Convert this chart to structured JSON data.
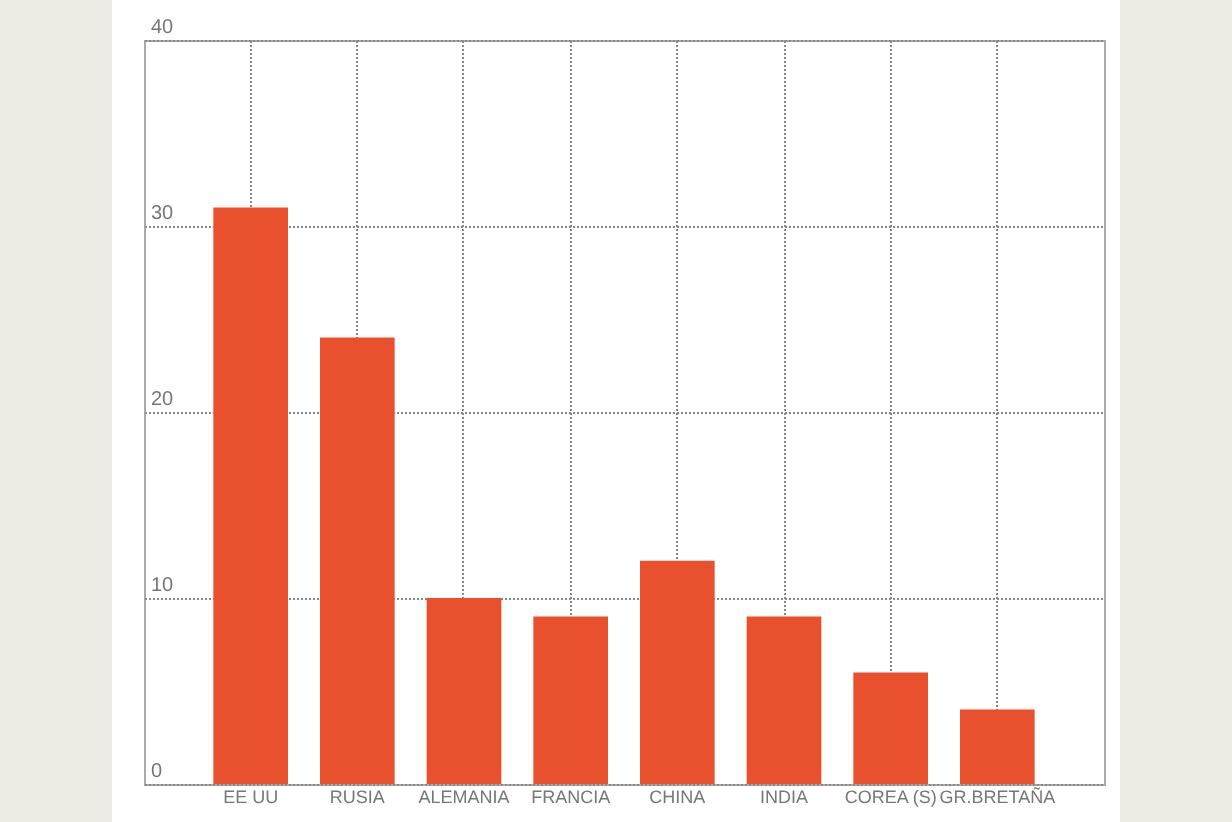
{
  "chart_data": {
    "type": "bar",
    "categories": [
      "EE UU",
      "RUSIA",
      "ALEMANIA",
      "FRANCIA",
      "CHINA",
      "INDIA",
      "COREA (S)",
      "GR.BRETAÑA"
    ],
    "values": [
      31,
      24,
      10,
      9,
      12,
      9,
      6,
      4
    ],
    "color": "#e8502e",
    "ylim": [
      0,
      40
    ],
    "yticks": [
      0,
      10,
      20,
      30,
      40
    ],
    "grid": true
  }
}
